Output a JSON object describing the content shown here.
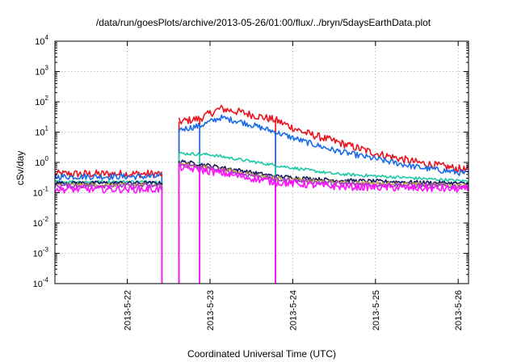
{
  "chart_data": {
    "type": "line",
    "title": "/data/run/goesPlots/archive/2013-05-26/01:00/flux/../bryn/5daysEarthData.plot",
    "xlabel": "Coordinated Universal Time (UTC)",
    "ylabel": "cSv/day",
    "y_scale": "log",
    "ylim": [
      0.0001,
      10000
    ],
    "xlim": [
      "2013-05-21 03:00",
      "2013-05-26 03:00"
    ],
    "grid": true,
    "x_ticks": [
      "2013-5-22",
      "2013-5-23",
      "2013-5-24",
      "2013-5-25",
      "2013-5-26"
    ],
    "y_ticks": [
      {
        "value": 0.0001,
        "base": "10",
        "exp": "-4"
      },
      {
        "value": 0.001,
        "base": "10",
        "exp": "-3"
      },
      {
        "value": 0.01,
        "base": "10",
        "exp": "-2"
      },
      {
        "value": 0.1,
        "base": "10",
        "exp": "-1"
      },
      {
        "value": 1,
        "base": "10",
        "exp": "0"
      },
      {
        "value": 10,
        "base": "10",
        "exp": "1"
      },
      {
        "value": 100,
        "base": "10",
        "exp": "2"
      },
      {
        "value": 1000,
        "base": "10",
        "exp": "3"
      },
      {
        "value": 10000,
        "base": "10",
        "exp": "4"
      }
    ],
    "gaps": [
      {
        "from": "2013-05-22 10:00",
        "to": "2013-05-22 15:00"
      }
    ],
    "dropouts": [
      "2013-05-22 10:00",
      "2013-05-22 15:00",
      "2013-05-22 21:00",
      "2013-05-23 19:00"
    ],
    "series": [
      {
        "color": "#e8141e",
        "points": [
          [
            "2013-05-21 03:00",
            0.42
          ],
          [
            "2013-05-22 10:00",
            0.42
          ],
          [
            "2013-05-22 15:00",
            22
          ],
          [
            "2013-05-22 21:00",
            28
          ],
          [
            "2013-05-23 03:00",
            60
          ],
          [
            "2013-05-23 09:00",
            45
          ],
          [
            "2013-05-23 19:00",
            25
          ],
          [
            "2013-05-24 03:00",
            10
          ],
          [
            "2013-05-24 12:00",
            5
          ],
          [
            "2013-05-25 00:00",
            2
          ],
          [
            "2013-05-25 12:00",
            1
          ],
          [
            "2013-05-26 03:00",
            0.55
          ]
        ],
        "noise": 0.13
      },
      {
        "color": "#1a6ce8",
        "points": [
          [
            "2013-05-21 03:00",
            0.34
          ],
          [
            "2013-05-22 10:00",
            0.34
          ],
          [
            "2013-05-22 15:00",
            12
          ],
          [
            "2013-05-22 21:00",
            16
          ],
          [
            "2013-05-23 03:00",
            30
          ],
          [
            "2013-05-23 09:00",
            22
          ],
          [
            "2013-05-23 19:00",
            10
          ],
          [
            "2013-05-24 03:00",
            5
          ],
          [
            "2013-05-24 12:00",
            2.5
          ],
          [
            "2013-05-25 00:00",
            1.3
          ],
          [
            "2013-05-25 12:00",
            0.7
          ],
          [
            "2013-05-26 03:00",
            0.42
          ]
        ],
        "noise": 0.1
      },
      {
        "color": "#1fc9a8",
        "points": [
          [
            "2013-05-21 03:00",
            0.23
          ],
          [
            "2013-05-22 10:00",
            0.23
          ],
          [
            "2013-05-22 15:00",
            2
          ],
          [
            "2013-05-23 00:00",
            1.8
          ],
          [
            "2013-05-23 19:00",
            0.8
          ],
          [
            "2013-05-24 12:00",
            0.42
          ],
          [
            "2013-05-25 12:00",
            0.3
          ],
          [
            "2013-05-26 03:00",
            0.24
          ]
        ],
        "noise": 0.05
      },
      {
        "color": "#1a1a5e",
        "points": [
          [
            "2013-05-21 03:00",
            0.21
          ],
          [
            "2013-05-22 10:00",
            0.21
          ],
          [
            "2013-05-22 15:00",
            1.1
          ],
          [
            "2013-05-23 03:00",
            0.7
          ],
          [
            "2013-05-23 19:00",
            0.35
          ],
          [
            "2013-05-24 12:00",
            0.26
          ],
          [
            "2013-05-26 03:00",
            0.2
          ]
        ],
        "noise": 0.06
      },
      {
        "color": "#b6a43a",
        "points": [
          [
            "2013-05-21 03:00",
            0.18
          ],
          [
            "2013-05-22 10:00",
            0.18
          ],
          [
            "2013-05-22 15:00",
            0.9
          ],
          [
            "2013-05-23 03:00",
            0.6
          ],
          [
            "2013-05-23 19:00",
            0.3
          ],
          [
            "2013-05-24 12:00",
            0.22
          ],
          [
            "2013-05-26 03:00",
            0.17
          ]
        ],
        "noise": 0.06
      },
      {
        "color": "#a040c8",
        "points": [
          [
            "2013-05-21 03:00",
            0.17
          ],
          [
            "2013-05-22 10:00",
            0.17
          ],
          [
            "2013-05-22 15:00",
            0.85
          ],
          [
            "2013-05-23 03:00",
            0.55
          ],
          [
            "2013-05-23 19:00",
            0.28
          ],
          [
            "2013-05-24 12:00",
            0.2
          ],
          [
            "2013-05-26 03:00",
            0.16
          ]
        ],
        "noise": 0.08
      },
      {
        "color": "#ff10ff",
        "points": [
          [
            "2013-05-21 03:00",
            0.13
          ],
          [
            "2013-05-22 10:00",
            0.13
          ],
          [
            "2013-05-22 15:00",
            0.7
          ],
          [
            "2013-05-23 03:00",
            0.45
          ],
          [
            "2013-05-23 19:00",
            0.22
          ],
          [
            "2013-05-24 12:00",
            0.16
          ],
          [
            "2013-05-26 03:00",
            0.13
          ]
        ],
        "noise": 0.12
      }
    ]
  }
}
